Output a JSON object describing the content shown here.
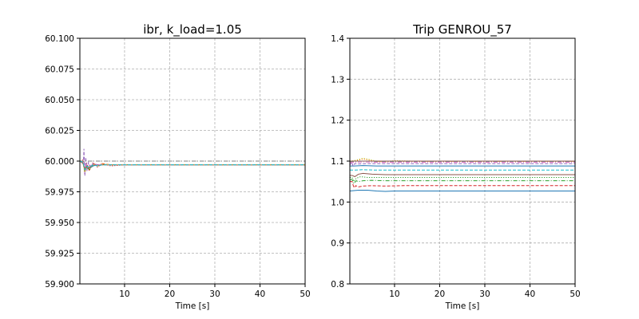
{
  "chart_data": [
    {
      "type": "line",
      "title": "ibr, k_load=1.05",
      "xlabel": "Time [s]",
      "ylabel": "",
      "xlim": [
        0.1,
        50
      ],
      "ylim": [
        59.9,
        60.1
      ],
      "xticks": [
        10,
        20,
        30,
        40,
        50
      ],
      "yticks": [
        59.9,
        59.925,
        59.95,
        59.975,
        60.0,
        60.025,
        60.05,
        60.075,
        60.1
      ],
      "ytick_labels": [
        "59.900",
        "59.925",
        "59.950",
        "59.975",
        "60.000",
        "60.025",
        "60.050",
        "60.075",
        "60.100"
      ],
      "grid": true,
      "series": [
        {
          "color": "#1f77b4",
          "dash": "solid",
          "x": [
            0.1,
            0.8,
            1.2,
            1.6,
            2.2,
            3,
            4,
            5,
            7,
            10,
            50
          ],
          "y": [
            60.0,
            59.999,
            59.993,
            59.996,
            59.994,
            59.996,
            59.997,
            59.997,
            59.997,
            59.997,
            59.997
          ]
        },
        {
          "color": "#ff7f0e",
          "dash": "dashed",
          "x": [
            0.1,
            0.8,
            1.2,
            1.6,
            2.2,
            3,
            4,
            5,
            7,
            10,
            50
          ],
          "y": [
            60.0,
            59.998,
            59.991,
            59.997,
            59.993,
            59.998,
            59.996,
            59.998,
            59.997,
            59.997,
            59.997
          ]
        },
        {
          "color": "#2ca02c",
          "dash": "dashdot",
          "x": [
            0.1,
            0.8,
            1.2,
            1.6,
            2.2,
            3,
            4,
            5,
            7,
            10,
            50
          ],
          "y": [
            60.0,
            59.999,
            59.992,
            59.995,
            59.993,
            59.997,
            59.996,
            59.997,
            59.997,
            59.997,
            59.997
          ]
        },
        {
          "color": "#d62728",
          "dash": "dotted",
          "x": [
            0.1,
            0.8,
            1.2,
            1.6,
            2.2,
            3,
            4,
            5,
            7,
            10,
            50
          ],
          "y": [
            60.0,
            60.001,
            59.989,
            59.998,
            59.992,
            59.999,
            59.995,
            59.998,
            59.996,
            59.997,
            59.997
          ]
        },
        {
          "color": "#9467bd",
          "dash": "dashed",
          "x": [
            0.1,
            0.9,
            1.0,
            1.2,
            1.4,
            1.7,
            2.0,
            2.5,
            3,
            4,
            50
          ],
          "y": [
            60.0,
            60.0,
            60.01,
            59.988,
            60.003,
            59.992,
            59.999,
            59.995,
            59.998,
            59.997,
            59.997
          ]
        },
        {
          "color": "#8c564b",
          "dash": "solid",
          "x": [
            0.1,
            0.8,
            1.2,
            1.6,
            2.2,
            3,
            4,
            5,
            7,
            10,
            50
          ],
          "y": [
            60.0,
            59.998,
            59.994,
            59.996,
            59.995,
            59.997,
            59.996,
            59.997,
            59.997,
            59.997,
            59.997
          ]
        },
        {
          "color": "#e377c2",
          "dash": "dashdot",
          "x": [
            0.1,
            0.8,
            1.2,
            1.6,
            2.2,
            3,
            4,
            5,
            7,
            10,
            50
          ],
          "y": [
            60.0,
            59.999,
            59.995,
            59.997,
            59.996,
            59.997,
            59.997,
            59.997,
            59.997,
            59.997,
            59.997
          ]
        },
        {
          "color": "#7f7f7f",
          "dash": "dashdot",
          "x": [
            0.1,
            50
          ],
          "y": [
            60.0,
            60.0
          ]
        },
        {
          "color": "#bcbd22",
          "dash": "dotted",
          "x": [
            0.1,
            0.8,
            1.2,
            1.6,
            2.2,
            3,
            4,
            5,
            7,
            10,
            50
          ],
          "y": [
            60.0,
            59.999,
            59.991,
            59.996,
            59.994,
            59.997,
            59.996,
            59.997,
            59.997,
            59.997,
            59.997
          ]
        },
        {
          "color": "#17becf",
          "dash": "dashed",
          "x": [
            0.1,
            0.8,
            1.2,
            1.6,
            2.2,
            3,
            4,
            5,
            7,
            10,
            50
          ],
          "y": [
            60.0,
            59.999,
            59.993,
            59.996,
            59.995,
            59.997,
            59.996,
            59.997,
            59.997,
            59.997,
            59.997
          ]
        }
      ]
    },
    {
      "type": "line",
      "title": "Trip GENROU_57",
      "xlabel": "Time [s]",
      "ylabel": "",
      "xlim": [
        0.1,
        50
      ],
      "ylim": [
        0.8,
        1.4
      ],
      "xticks": [
        10,
        20,
        30,
        40,
        50
      ],
      "yticks": [
        0.8,
        0.9,
        1.0,
        1.1,
        1.2,
        1.3,
        1.4
      ],
      "ytick_labels": [
        "0.8",
        "0.9",
        "1.0",
        "1.1",
        "1.2",
        "1.3",
        "1.4"
      ],
      "grid": true,
      "series": [
        {
          "color": "#1f77b4",
          "dash": "solid",
          "x": [
            0.1,
            1,
            2,
            4,
            6,
            8,
            10,
            15,
            50
          ],
          "y": [
            1.027,
            1.028,
            1.029,
            1.029,
            1.027,
            1.026,
            1.027,
            1.027,
            1.027
          ]
        },
        {
          "color": "#d62728",
          "dash": "dashed",
          "x": [
            0.1,
            0.6,
            1.0,
            1.4,
            2,
            3,
            5,
            8,
            12,
            50
          ],
          "y": [
            1.05,
            1.05,
            1.035,
            1.04,
            1.037,
            1.039,
            1.04,
            1.039,
            1.04,
            1.04
          ]
        },
        {
          "color": "#2ca02c",
          "dash": "dashdot",
          "x": [
            0.1,
            0.6,
            1.0,
            1.5,
            2,
            3,
            5,
            8,
            12,
            50
          ],
          "y": [
            1.055,
            1.055,
            1.045,
            1.052,
            1.05,
            1.052,
            1.053,
            1.052,
            1.052,
            1.052
          ]
        },
        {
          "color": "#2ca02c",
          "dash": "dotted",
          "x": [
            0.1,
            0.6,
            1.0,
            1.5,
            2.5,
            4,
            6,
            10,
            50
          ],
          "y": [
            1.06,
            1.06,
            1.05,
            1.058,
            1.062,
            1.06,
            1.06,
            1.06,
            1.06
          ]
        },
        {
          "color": "#8c564b",
          "dash": "solid",
          "x": [
            0.1,
            0.6,
            1.2,
            2,
            3,
            5,
            8,
            12,
            50
          ],
          "y": [
            1.065,
            1.065,
            1.062,
            1.068,
            1.07,
            1.068,
            1.067,
            1.067,
            1.067
          ]
        },
        {
          "color": "#17becf",
          "dash": "dashed",
          "x": [
            0.1,
            1,
            3,
            6,
            10,
            50
          ],
          "y": [
            1.078,
            1.078,
            1.079,
            1.078,
            1.078,
            1.078
          ]
        },
        {
          "color": "#1f77b4",
          "dash": "solid",
          "x": [
            0.1,
            1,
            3,
            6,
            10,
            50
          ],
          "y": [
            1.088,
            1.088,
            1.089,
            1.088,
            1.088,
            1.088
          ]
        },
        {
          "color": "#9467bd",
          "dash": "dashed",
          "x": [
            0.1,
            0.5,
            0.8,
            1.2,
            2,
            4,
            8,
            50
          ],
          "y": [
            1.09,
            1.098,
            1.088,
            1.094,
            1.093,
            1.094,
            1.094,
            1.094
          ]
        },
        {
          "color": "#ff7f0e",
          "dash": "dotted",
          "x": [
            0.1,
            1,
            2,
            3,
            4,
            6,
            8,
            10,
            14,
            50
          ],
          "y": [
            1.1,
            1.1,
            1.102,
            1.105,
            1.103,
            1.099,
            1.098,
            1.1,
            1.099,
            1.099
          ]
        },
        {
          "color": "#bcbd22",
          "dash": "dotted",
          "x": [
            0.1,
            1,
            2,
            3,
            4,
            6,
            8,
            10,
            14,
            50
          ],
          "y": [
            1.1,
            1.101,
            1.104,
            1.107,
            1.105,
            1.1,
            1.099,
            1.101,
            1.1,
            1.1
          ]
        },
        {
          "color": "#8c564b",
          "dash": "solid",
          "x": [
            0.1,
            1,
            3,
            6,
            10,
            50
          ],
          "y": [
            1.1,
            1.1,
            1.1,
            1.1,
            1.1,
            1.1
          ]
        },
        {
          "color": "#7f7f7f",
          "dash": "dashdot",
          "x": [
            0.1,
            1,
            3,
            6,
            10,
            50
          ],
          "y": [
            1.098,
            1.099,
            1.1,
            1.099,
            1.099,
            1.099
          ]
        },
        {
          "color": "#e377c2",
          "dash": "dashdot",
          "x": [
            0.1,
            1,
            3,
            6,
            10,
            50
          ],
          "y": [
            1.096,
            1.097,
            1.098,
            1.097,
            1.097,
            1.097
          ]
        }
      ]
    }
  ]
}
